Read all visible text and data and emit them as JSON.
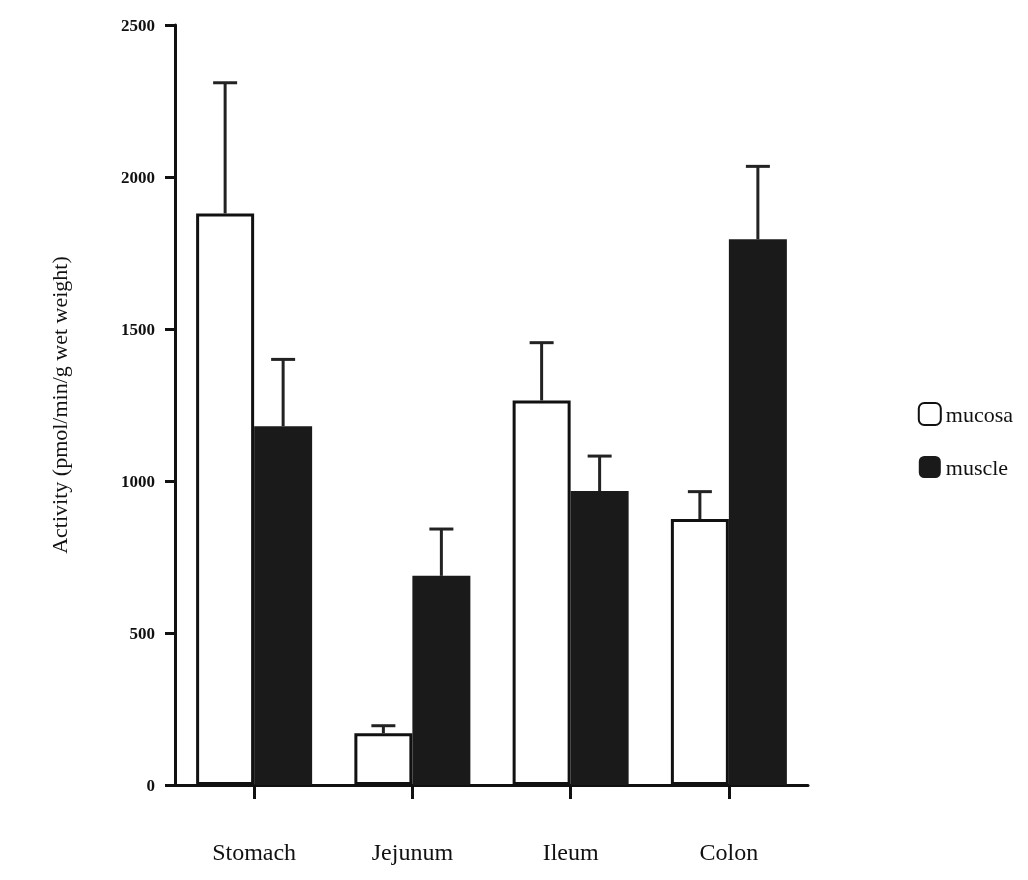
{
  "chart_data": {
    "type": "bar",
    "ylabel": "Activity (pmol/min/g wet weight)",
    "categories": [
      "Stomach",
      "Jejunum",
      "Ileum",
      "Colon"
    ],
    "series": [
      {
        "name": "mucosa",
        "color": "#ffffff",
        "values": [
          1880,
          170,
          1265,
          875
        ],
        "errors": [
          [
            1880,
            2310
          ],
          [
            170,
            195
          ],
          [
            1265,
            1455
          ],
          [
            875,
            965
          ]
        ]
      },
      {
        "name": "muscle",
        "color": "#1a1a1a",
        "values": [
          1180,
          688,
          967,
          1795
        ],
        "errors": [
          [
            1180,
            1400
          ],
          [
            688,
            842
          ],
          [
            967,
            1082
          ],
          [
            1795,
            2035
          ]
        ]
      }
    ],
    "ylim": [
      0,
      2500
    ],
    "yticks": [
      0,
      500,
      1000,
      1500,
      2000,
      2500
    ],
    "grid": false,
    "legend": "right"
  }
}
